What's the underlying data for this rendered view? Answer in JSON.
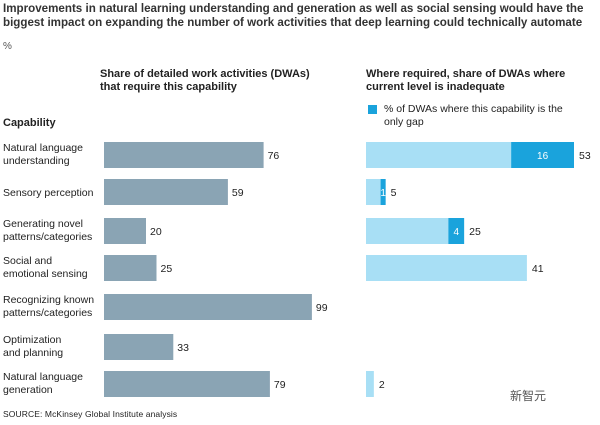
{
  "header": {
    "title": "Improvements in natural learning understanding and generation as well as social sensing would have the biggest impact on expanding the number of work activities that deep learning could technically automate",
    "unit": "%"
  },
  "columns": {
    "left_title": "Share of detailed work activities (DWAs) that require this capability",
    "right_title": "Where required, share of DWAs where current level is inadequate",
    "capability_header": "Capability"
  },
  "legend": {
    "label": "% of DWAs where this capability is the only gap"
  },
  "footer": {
    "source": "SOURCE: McKinsey Global Institute analysis",
    "watermark": "新智元"
  },
  "chart_data": [
    {
      "type": "bar",
      "orientation": "horizontal",
      "title": "Share of detailed work activities (DWAs) that require this capability",
      "categories": [
        "Natural language understanding",
        "Sensory perception",
        "Generating novel patterns/categories",
        "Social and emotional sensing",
        "Recognizing known patterns/categories",
        "Optimization and planning",
        "Natural language generation"
      ],
      "values": [
        76,
        59,
        20,
        25,
        99,
        33,
        79
      ],
      "xlim": [
        0,
        100
      ],
      "grid": false,
      "colors": {
        "bar": "#8aa4b4"
      }
    },
    {
      "type": "bar",
      "orientation": "horizontal",
      "stacked": true,
      "title": "Where required, share of DWAs where current level is inadequate",
      "categories": [
        "Natural language understanding",
        "Sensory perception",
        "Generating novel patterns/categories",
        "Social and emotional sensing",
        "Recognizing known patterns/categories",
        "Optimization and planning",
        "Natural language generation"
      ],
      "totals": [
        53,
        5,
        25,
        41,
        null,
        null,
        2
      ],
      "only_gap": [
        16,
        1,
        4,
        null,
        null,
        null,
        null
      ],
      "series": [
        {
          "name": "% of DWAs where this capability is the only gap",
          "values": [
            16,
            1,
            4,
            null,
            null,
            null,
            null
          ]
        }
      ],
      "xlim": [
        0,
        53
      ],
      "grid": false,
      "legend": "top-left",
      "colors": {
        "total": "#a8dff5",
        "only_gap": "#1aa3dc"
      }
    }
  ]
}
